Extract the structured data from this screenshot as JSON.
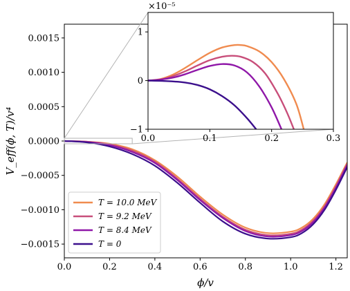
{
  "chart_data": [
    {
      "panel": "main",
      "type": "line",
      "xlabel": "ϕ/v",
      "ylabel": "V_eff(ϕ, T)/v⁴",
      "xlim": [
        0.0,
        1.25
      ],
      "ylim": [
        -0.0017,
        0.0017
      ],
      "xticks": [
        0.0,
        0.2,
        0.4,
        0.6,
        0.8,
        1.0,
        1.2
      ],
      "xtick_labels": [
        "0.0",
        "0.2",
        "0.4",
        "0.6",
        "0.8",
        "1.0",
        "1.2"
      ],
      "yticks": [
        0.0015,
        0.001,
        0.0005,
        0.0,
        -0.0005,
        -0.001,
        -0.0015
      ],
      "ytick_labels": [
        "0.0015",
        "0.0010",
        "0.0005",
        "0.0000",
        "−0.0005",
        "−0.0010",
        "−0.0015"
      ],
      "grid": false,
      "legend_position": "lower-left",
      "series": [
        {
          "name": "T = 10.0 MeV",
          "color": "#f08b4f",
          "x": [
            0,
            0.1,
            0.2,
            0.3,
            0.4,
            0.5,
            0.6,
            0.7,
            0.8,
            0.9,
            1.0,
            1.05,
            1.1,
            1.15,
            1.2,
            1.25
          ],
          "y": [
            0,
            -1e-05,
            -4e-05,
            -0.00012,
            -0.00028,
            -0.00052,
            -0.00081,
            -0.00107,
            -0.00126,
            -0.00134,
            -0.00132,
            -0.00126,
            -0.00113,
            -0.00092,
            -0.00063,
            -0.00031
          ]
        },
        {
          "name": "T = 9.2 MeV",
          "color": "#c84e7a",
          "x": [
            0,
            0.1,
            0.2,
            0.3,
            0.4,
            0.5,
            0.6,
            0.7,
            0.8,
            0.9,
            1.0,
            1.05,
            1.1,
            1.15,
            1.2,
            1.25
          ],
          "y": [
            0,
            -1e-05,
            -5e-05,
            -0.00014,
            -0.0003,
            -0.00055,
            -0.00084,
            -0.0011,
            -0.00129,
            -0.00137,
            -0.00135,
            -0.00129,
            -0.00116,
            -0.00095,
            -0.00066,
            -0.00033
          ]
        },
        {
          "name": "T = 8.4 MeV",
          "color": "#8f17a8",
          "x": [
            0,
            0.1,
            0.2,
            0.3,
            0.4,
            0.5,
            0.6,
            0.7,
            0.8,
            0.9,
            1.0,
            1.05,
            1.1,
            1.15,
            1.2,
            1.25
          ],
          "y": [
            0,
            -1.5e-05,
            -6e-05,
            -0.00016,
            -0.00032,
            -0.00057,
            -0.00086,
            -0.00112,
            -0.00131,
            -0.00139,
            -0.00137,
            -0.00131,
            -0.00118,
            -0.00097,
            -0.00068,
            -0.00035
          ]
        },
        {
          "name": "T = 0",
          "color": "#3b0f8c",
          "x": [
            0,
            0.1,
            0.2,
            0.3,
            0.4,
            0.5,
            0.6,
            0.7,
            0.8,
            0.9,
            1.0,
            1.05,
            1.1,
            1.15,
            1.2,
            1.25
          ],
          "y": [
            0,
            -2e-05,
            -8e-05,
            -0.00019,
            -0.00036,
            -0.00061,
            -0.0009,
            -0.00117,
            -0.00135,
            -0.00142,
            -0.0014,
            -0.00134,
            -0.00121,
            -0.001,
            -0.00071,
            -0.00038
          ]
        }
      ]
    },
    {
      "panel": "inset",
      "type": "line",
      "xlim": [
        0.0,
        0.3
      ],
      "ylim": [
        -1.0,
        1.4
      ],
      "y_scale_label": "×10⁻⁵",
      "xticks": [
        0.0,
        0.1,
        0.2,
        0.3
      ],
      "xtick_labels": [
        "0.0",
        "0.1",
        "0.2",
        "0.3"
      ],
      "yticks": [
        1,
        0,
        -1
      ],
      "ytick_labels": [
        "1",
        "0",
        "−1"
      ],
      "series": [
        {
          "name": "T = 10.0 MeV",
          "color": "#f08b4f",
          "x": [
            0,
            0.02,
            0.04,
            0.06,
            0.08,
            0.1,
            0.12,
            0.14,
            0.15,
            0.16,
            0.18,
            0.2,
            0.22,
            0.24,
            0.252
          ],
          "y": [
            0,
            0.03,
            0.12,
            0.26,
            0.42,
            0.57,
            0.68,
            0.73,
            0.73,
            0.71,
            0.6,
            0.38,
            0.03,
            -0.48,
            -1.0
          ]
        },
        {
          "name": "T = 9.2 MeV",
          "color": "#c84e7a",
          "x": [
            0,
            0.02,
            0.04,
            0.06,
            0.08,
            0.1,
            0.12,
            0.135,
            0.15,
            0.17,
            0.19,
            0.21,
            0.225,
            0.236
          ],
          "y": [
            0,
            0.02,
            0.09,
            0.19,
            0.31,
            0.42,
            0.49,
            0.51,
            0.49,
            0.38,
            0.14,
            -0.27,
            -0.66,
            -1.0
          ]
        },
        {
          "name": "T = 8.4 MeV",
          "color": "#8f17a8",
          "x": [
            0,
            0.02,
            0.04,
            0.06,
            0.08,
            0.1,
            0.12,
            0.14,
            0.16,
            0.18,
            0.2,
            0.216
          ],
          "y": [
            0,
            0.02,
            0.06,
            0.13,
            0.22,
            0.3,
            0.34,
            0.31,
            0.17,
            -0.12,
            -0.55,
            -1.0
          ]
        },
        {
          "name": "T = 0",
          "color": "#3b0f8c",
          "x": [
            0,
            0.03,
            0.06,
            0.08,
            0.1,
            0.12,
            0.14,
            0.16,
            0.175
          ],
          "y": [
            0,
            -0.01,
            -0.04,
            -0.09,
            -0.18,
            -0.32,
            -0.51,
            -0.77,
            -1.0
          ]
        }
      ]
    }
  ],
  "legend": {
    "items": [
      {
        "label": "T = 10.0 MeV",
        "color": "#f08b4f"
      },
      {
        "label": "T = 9.2 MeV",
        "color": "#c84e7a"
      },
      {
        "label": "T = 8.4 MeV",
        "color": "#8f17a8"
      },
      {
        "label": "T = 0",
        "color": "#3b0f8c"
      }
    ]
  }
}
